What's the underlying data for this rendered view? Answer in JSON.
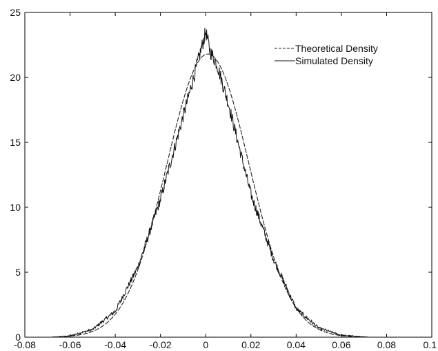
{
  "chart_data": {
    "type": "line",
    "title": "",
    "xlabel": "",
    "ylabel": "",
    "xlim": [
      -0.08,
      0.1
    ],
    "ylim": [
      0,
      25
    ],
    "xticks": [
      "-0.08",
      "-0.06",
      "-0.04",
      "-0.02",
      "0",
      "0.02",
      "0.04",
      "0.06",
      "0.08",
      "0.1"
    ],
    "yticks": [
      "0",
      "5",
      "10",
      "15",
      "20",
      "25"
    ],
    "grid": false,
    "legend": {
      "placement": "top-right",
      "entries": [
        "Theoretical Density",
        "Simulated Density"
      ]
    },
    "series": [
      {
        "name": "Theoretical Density",
        "style": "dashed",
        "color": "#222222",
        "distribution": "normal",
        "mean": 0.001,
        "std": 0.0183,
        "peak": 21.8
      },
      {
        "name": "Simulated Density",
        "style": "solid",
        "color": "#111111",
        "x": [
          -0.068,
          -0.06,
          -0.05,
          -0.04,
          -0.03,
          -0.02,
          -0.01,
          -0.005,
          0,
          0.002,
          0.005,
          0.01,
          0.02,
          0.03,
          0.04,
          0.05,
          0.06,
          0.072
        ],
        "y": [
          0,
          0.1,
          0.6,
          2.0,
          5.4,
          10.6,
          17.0,
          20.2,
          23.5,
          22.0,
          21.0,
          18.0,
          11.0,
          6.0,
          2.2,
          0.7,
          0.15,
          0
        ]
      }
    ]
  }
}
